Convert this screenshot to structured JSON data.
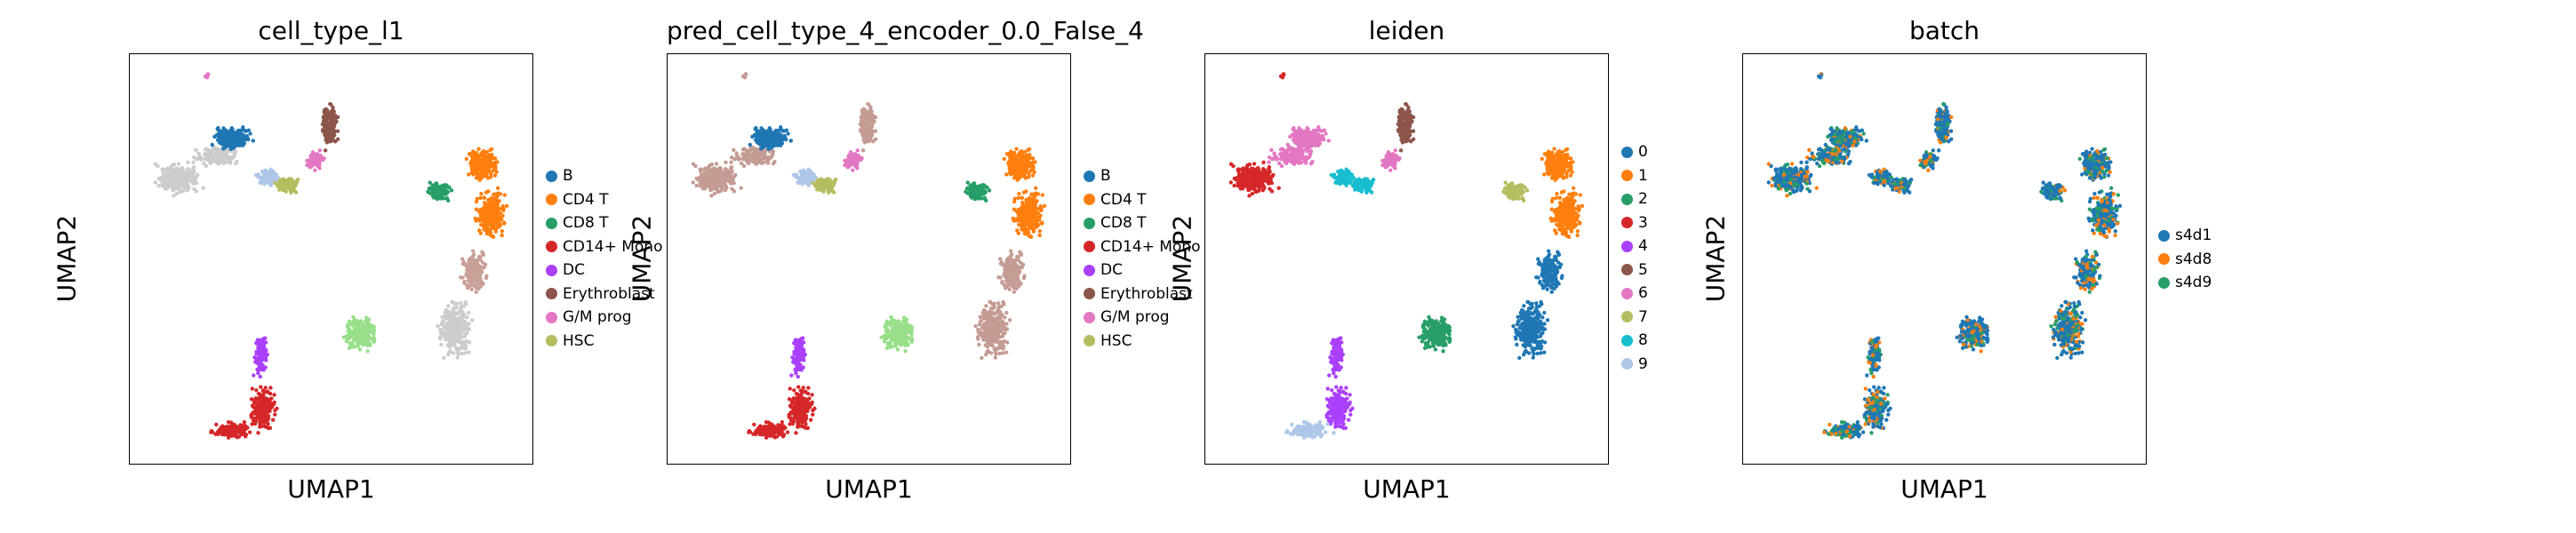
{
  "chart_data": [
    {
      "type": "scatter",
      "title": "cell_type_l1",
      "xlabel": "UMAP1",
      "ylabel": "UMAP2",
      "grid": false,
      "legend_position": "right",
      "legend": [
        {
          "label": "B",
          "color": "#1f77b4"
        },
        {
          "label": "CD4 T",
          "color": "#ff7f0e"
        },
        {
          "label": "CD8 T",
          "color": "#279e68"
        },
        {
          "label": "CD14+ Mono",
          "color": "#d62728"
        },
        {
          "label": "DC",
          "color": "#aa40fc"
        },
        {
          "label": "Erythroblast",
          "color": "#8c564b"
        },
        {
          "label": "G/M prog",
          "color": "#e377c2"
        },
        {
          "label": "HSC",
          "color": "#b5bd61"
        }
      ]
    },
    {
      "type": "scatter",
      "title": "pred_cell_type_4_encoder_0.0_False_4",
      "xlabel": "UMAP1",
      "ylabel": "UMAP2",
      "grid": false,
      "legend_position": "right",
      "legend": [
        {
          "label": "B",
          "color": "#1f77b4"
        },
        {
          "label": "CD4 T",
          "color": "#ff7f0e"
        },
        {
          "label": "CD8 T",
          "color": "#279e68"
        },
        {
          "label": "CD14+ Mono",
          "color": "#d62728"
        },
        {
          "label": "DC",
          "color": "#aa40fc"
        },
        {
          "label": "Erythroblast",
          "color": "#8c564b"
        },
        {
          "label": "G/M prog",
          "color": "#e377c2"
        },
        {
          "label": "HSC",
          "color": "#b5bd61"
        }
      ]
    },
    {
      "type": "scatter",
      "title": "leiden",
      "xlabel": "UMAP1",
      "ylabel": "UMAP2",
      "grid": false,
      "legend_position": "right",
      "legend": [
        {
          "label": "0",
          "color": "#1f77b4"
        },
        {
          "label": "1",
          "color": "#ff7f0e"
        },
        {
          "label": "2",
          "color": "#279e68"
        },
        {
          "label": "3",
          "color": "#d62728"
        },
        {
          "label": "4",
          "color": "#aa40fc"
        },
        {
          "label": "5",
          "color": "#8c564b"
        },
        {
          "label": "6",
          "color": "#e377c2"
        },
        {
          "label": "7",
          "color": "#b5bd61"
        },
        {
          "label": "8",
          "color": "#17becf"
        },
        {
          "label": "9",
          "color": "#aec7e8"
        }
      ]
    },
    {
      "type": "scatter",
      "title": "batch",
      "xlabel": "UMAP1",
      "ylabel": "UMAP2",
      "grid": false,
      "legend_position": "right",
      "legend": [
        {
          "label": "s4d1",
          "color": "#1f77b4"
        },
        {
          "label": "s4d8",
          "color": "#ff7f0e"
        },
        {
          "label": "s4d9",
          "color": "#279e68"
        }
      ]
    }
  ]
}
